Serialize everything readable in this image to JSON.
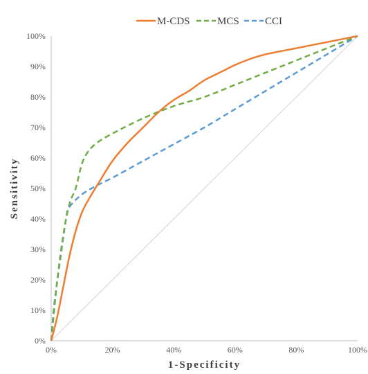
{
  "chart_data": {
    "type": "line",
    "xlabel": "1-Specificity",
    "ylabel": "Sensitivity",
    "xlim": [
      0,
      1
    ],
    "ylim": [
      0,
      1
    ],
    "x_ticks": [
      "0%",
      "20%",
      "40%",
      "60%",
      "80%",
      "100%"
    ],
    "y_ticks": [
      "0%",
      "10%",
      "20%",
      "30%",
      "40%",
      "50%",
      "60%",
      "70%",
      "80%",
      "90%",
      "100%"
    ],
    "grid": false,
    "legend_position": "top",
    "reference_line": {
      "color": "#d9d9d9",
      "x": [
        0,
        1
      ],
      "y": [
        0,
        1
      ]
    },
    "series": [
      {
        "name": "M-CDS",
        "color": "#ED7D31",
        "dash": "solid",
        "x": [
          0,
          0.02,
          0.04,
          0.06,
          0.08,
          0.1,
          0.12,
          0.15,
          0.2,
          0.25,
          0.3,
          0.35,
          0.4,
          0.45,
          0.5,
          0.55,
          0.6,
          0.65,
          0.7,
          0.8,
          0.9,
          1.0
        ],
        "y": [
          0,
          0.08,
          0.18,
          0.28,
          0.36,
          0.42,
          0.46,
          0.51,
          0.59,
          0.65,
          0.7,
          0.75,
          0.79,
          0.82,
          0.855,
          0.88,
          0.905,
          0.925,
          0.94,
          0.96,
          0.98,
          1.0
        ]
      },
      {
        "name": "MCS",
        "color": "#70AD47",
        "dash": "dashed",
        "x": [
          0,
          0.02,
          0.04,
          0.06,
          0.08,
          0.1,
          0.12,
          0.15,
          0.2,
          0.3,
          0.4,
          0.5,
          0.6,
          0.7,
          0.8,
          0.9,
          1.0
        ],
        "y": [
          0,
          0.2,
          0.35,
          0.45,
          0.5,
          0.58,
          0.62,
          0.65,
          0.68,
          0.73,
          0.77,
          0.8,
          0.84,
          0.88,
          0.92,
          0.96,
          1.0
        ]
      },
      {
        "name": "CCI",
        "color": "#5B9BD5",
        "dash": "dashed",
        "x": [
          0,
          0.01,
          0.03,
          0.05,
          0.06,
          0.1,
          0.15,
          0.2,
          0.3,
          0.4,
          0.5,
          0.6,
          0.7,
          0.8,
          0.9,
          1.0
        ],
        "y": [
          0,
          0.12,
          0.27,
          0.41,
          0.44,
          0.48,
          0.51,
          0.535,
          0.59,
          0.645,
          0.7,
          0.76,
          0.82,
          0.88,
          0.94,
          1.0
        ]
      }
    ]
  }
}
